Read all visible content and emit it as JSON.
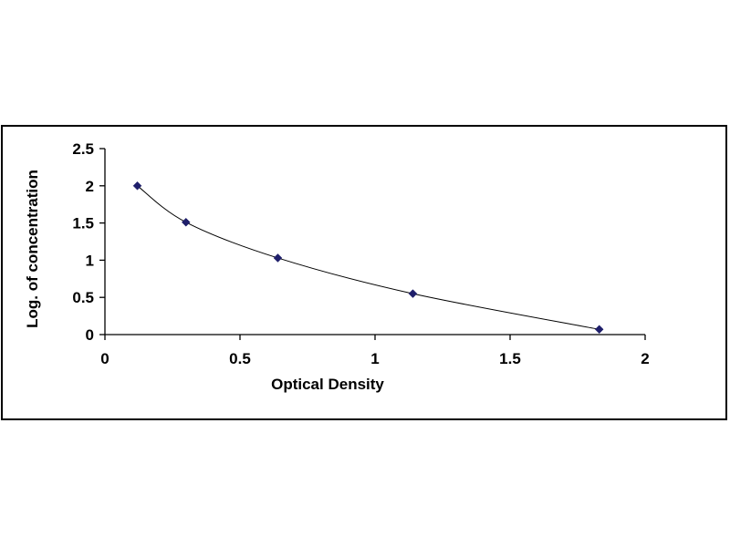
{
  "chart_data": {
    "type": "scatter",
    "title": "",
    "xlabel": "Optical Density",
    "ylabel": "Log. of concentration",
    "xlim": [
      0,
      2
    ],
    "ylim": [
      0,
      2.5
    ],
    "x_ticks": [
      "0",
      "0.5",
      "1",
      "1.5",
      "2"
    ],
    "y_ticks": [
      "0",
      "0.5",
      "1",
      "1.5",
      "2",
      "2.5"
    ],
    "x_tick_values": [
      0,
      0.5,
      1,
      1.5,
      2
    ],
    "y_tick_values": [
      0,
      0.5,
      1,
      1.5,
      2,
      2.5
    ],
    "grid": false,
    "legend": "none",
    "trendline": "smooth curve through points",
    "series": [
      {
        "points": [
          {
            "x": 0.12,
            "y": 2.0
          },
          {
            "x": 0.3,
            "y": 1.51
          },
          {
            "x": 0.64,
            "y": 1.03
          },
          {
            "x": 1.14,
            "y": 0.55
          },
          {
            "x": 1.83,
            "y": 0.07
          }
        ],
        "marker": "diamond",
        "color": "#1f1f6b"
      }
    ]
  }
}
